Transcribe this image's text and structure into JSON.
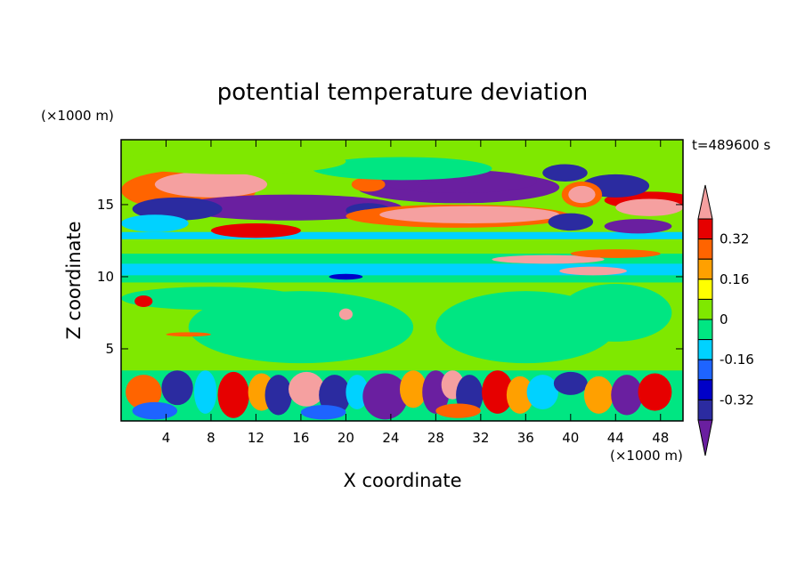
{
  "chart_data": {
    "type": "heatmap",
    "title": "potential temperature deviation",
    "xlabel": "X coordinate",
    "ylabel": "Z coordinate",
    "x_unit": "(×1000 m)",
    "y_unit": "(×1000 m)",
    "time_label": "t=489600 s",
    "xlim": [
      0,
      50
    ],
    "ylim": [
      0,
      19.5
    ],
    "x_ticks": [
      4,
      8,
      12,
      16,
      20,
      24,
      28,
      32,
      36,
      40,
      44,
      48
    ],
    "y_ticks": [
      5,
      10,
      15
    ],
    "colorbar": {
      "levels": [
        -0.4,
        -0.32,
        -0.24,
        -0.16,
        -0.08,
        0,
        0.08,
        0.16,
        0.24,
        0.32,
        0.4
      ],
      "labeled": [
        0.32,
        0.16,
        0,
        -0.16,
        -0.32
      ],
      "colors": [
        "#6a1fa0",
        "#2b2ba0",
        "#0000c8",
        "#1e64ff",
        "#00d2ff",
        "#00e682",
        "#7fe800",
        "#ffff00",
        "#ffa000",
        "#ff6400",
        "#e60000",
        "#f5a0a0"
      ]
    },
    "grid": false
  }
}
